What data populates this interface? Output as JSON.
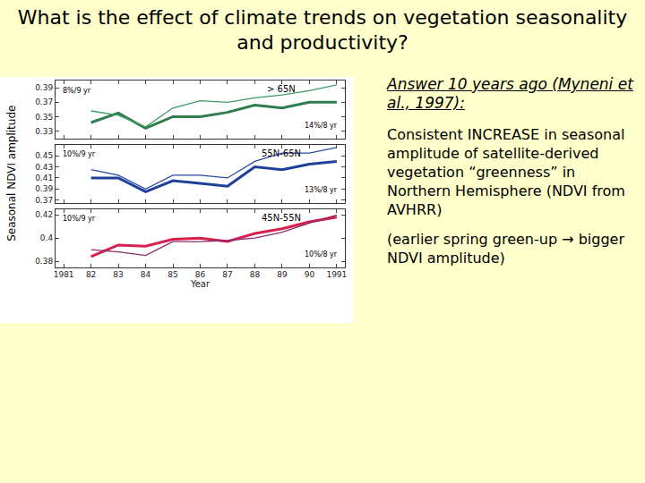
{
  "title": "What is the effect of climate trends on vegetation seasonality and productivity?",
  "heading": "Answer 10 years ago (Myneni et al., 1997):",
  "points": [
    "Consistent INCREASE in seasonal amplitude of satellite-derived vegetation “greenness” in Northern Hemisphere (NDVI from AVHRR)",
    "(earlier spring green-up → bigger NDVI amplitude)"
  ],
  "chart_data": [
    {
      "type": "line",
      "label": "> 65N",
      "annotations": [
        "8%/9 yr",
        "14%/8 yr"
      ],
      "x": [
        1982,
        1983,
        1984,
        1985,
        1986,
        1987,
        1988,
        1989,
        1990,
        1991
      ],
      "series": [
        {
          "color": "#2e7d4f",
          "line_style": "thick",
          "values": [
            0.342,
            0.355,
            0.334,
            0.35,
            0.35,
            0.356,
            0.366,
            0.362,
            0.37,
            0.37
          ]
        },
        {
          "color": "#3f9a66",
          "line_style": "thin",
          "values": [
            0.358,
            0.352,
            0.336,
            0.362,
            0.372,
            0.37,
            0.376,
            0.38,
            0.386,
            0.394
          ]
        }
      ],
      "xlim": [
        1980.7,
        1991.3
      ],
      "ylim": [
        0.32,
        0.4
      ],
      "yticks": [
        0.33,
        0.35,
        0.37,
        0.39
      ],
      "xticks": [
        1981,
        {
          "value": 1982,
          "label": "82"
        },
        {
          "value": 1983,
          "label": "83"
        },
        {
          "value": 1984,
          "label": "84"
        },
        {
          "value": 1985,
          "label": "85"
        },
        {
          "value": 1986,
          "label": "86"
        },
        {
          "value": 1987,
          "label": "87"
        },
        {
          "value": 1988,
          "label": "88"
        },
        {
          "value": 1989,
          "label": "89"
        },
        {
          "value": 1990,
          "label": "90"
        },
        1991
      ],
      "tick_labels": "y",
      "grid": false
    },
    {
      "type": "line",
      "label": "55N-65N",
      "annotations": [
        "10%/9 yr",
        "13%/8 yr"
      ],
      "y_label": "Seasonal NDVI amplitude",
      "x": [
        1982,
        1983,
        1984,
        1985,
        1986,
        1987,
        1988,
        1989,
        1990,
        1991
      ],
      "series": [
        {
          "color": "#1f3f9a",
          "line_style": "thick",
          "values": [
            0.41,
            0.41,
            0.385,
            0.405,
            0.4,
            0.395,
            0.43,
            0.425,
            0.435,
            0.44
          ]
        },
        {
          "color": "#2a4aa8",
          "line_style": "thin",
          "values": [
            0.425,
            0.415,
            0.39,
            0.415,
            0.415,
            0.41,
            0.44,
            0.455,
            0.455,
            0.465
          ]
        }
      ],
      "xlim": [
        1980.7,
        1991.3
      ],
      "ylim": [
        0.365,
        0.47
      ],
      "yticks": [
        0.37,
        0.39,
        0.41,
        0.43,
        0.45
      ],
      "xticks": [
        1981,
        {
          "value": 1982,
          "label": "82"
        },
        {
          "value": 1983,
          "label": "83"
        },
        {
          "value": 1984,
          "label": "84"
        },
        {
          "value": 1985,
          "label": "85"
        },
        {
          "value": 1986,
          "label": "86"
        },
        {
          "value": 1987,
          "label": "87"
        },
        {
          "value": 1988,
          "label": "88"
        },
        {
          "value": 1989,
          "label": "89"
        },
        {
          "value": 1990,
          "label": "90"
        },
        1991
      ],
      "tick_labels": "y",
      "grid": false
    },
    {
      "type": "line",
      "label": "45N-55N",
      "annotations": [
        "10%/9 yr",
        "10%/8 yr"
      ],
      "x_label": "Year",
      "x": [
        1982,
        1983,
        1984,
        1985,
        1986,
        1987,
        1988,
        1989,
        1990,
        1991
      ],
      "series": [
        {
          "color": "#d6204f",
          "line_style": "thick",
          "values": [
            0.384,
            0.394,
            0.393,
            0.399,
            0.4,
            0.397,
            0.404,
            0.408,
            0.414,
            0.418
          ]
        },
        {
          "color": "#8a2a6a",
          "line_style": "thin",
          "values": [
            0.39,
            0.388,
            0.385,
            0.397,
            0.397,
            0.398,
            0.4,
            0.405,
            0.413,
            0.42
          ]
        }
      ],
      "xlim": [
        1980.7,
        1991.3
      ],
      "ylim": [
        0.375,
        0.425
      ],
      "yticks": [
        0.38,
        0.4,
        0.42
      ],
      "xticks": [
        1981,
        {
          "value": 1982,
          "label": "82"
        },
        {
          "value": 1983,
          "label": "83"
        },
        {
          "value": 1984,
          "label": "84"
        },
        {
          "value": 1985,
          "label": "85"
        },
        {
          "value": 1986,
          "label": "86"
        },
        {
          "value": 1987,
          "label": "87"
        },
        {
          "value": 1988,
          "label": "88"
        },
        {
          "value": 1989,
          "label": "89"
        },
        {
          "value": 1990,
          "label": "90"
        },
        1991
      ],
      "tick_labels": true,
      "grid": false
    }
  ]
}
